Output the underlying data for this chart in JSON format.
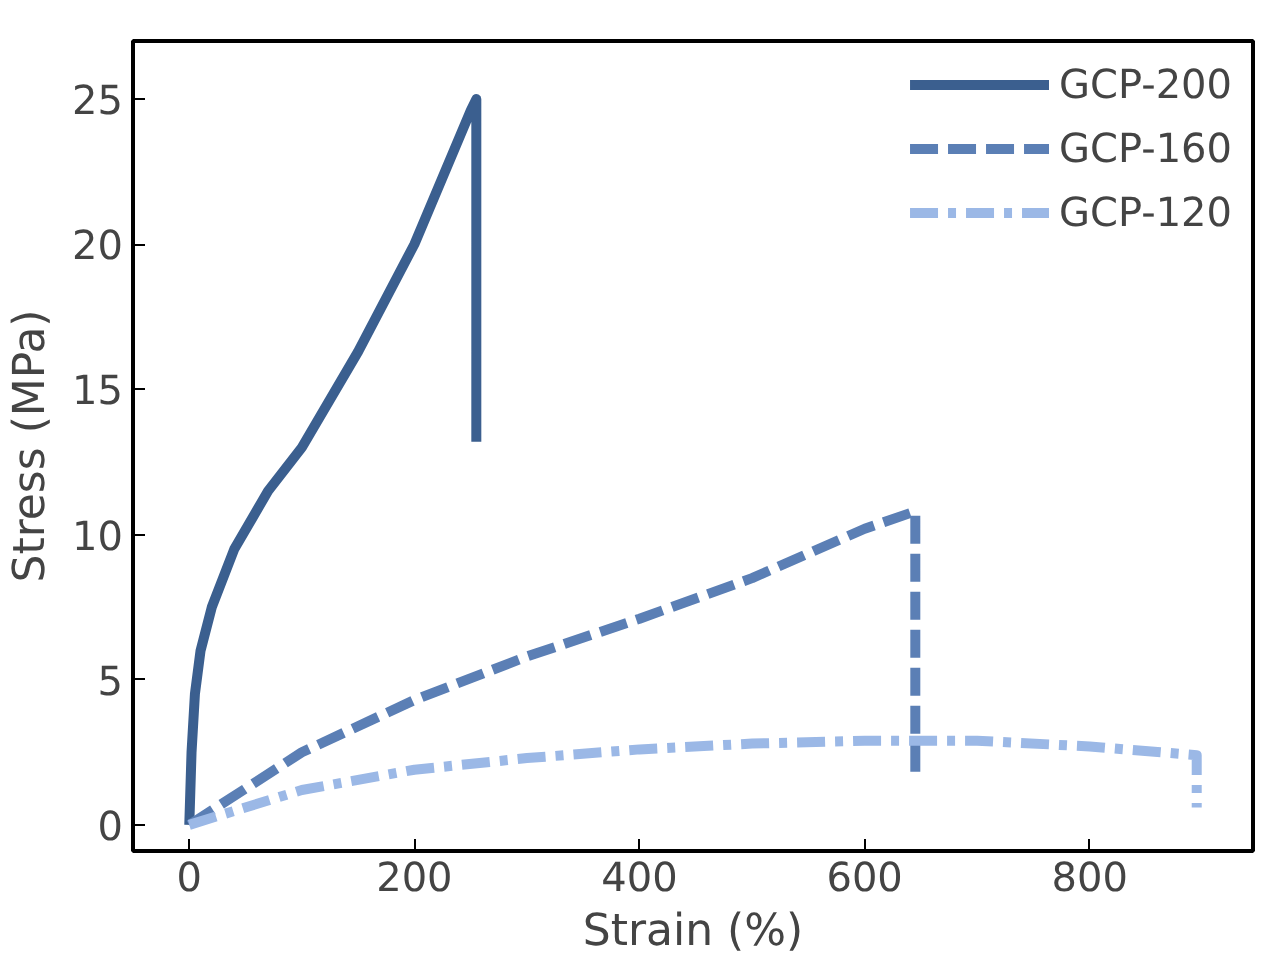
{
  "chart_data": {
    "type": "line",
    "xlabel": "Strain (%)",
    "ylabel": "Stress (MPa)",
    "xlim": [
      -50,
      945
    ],
    "ylim": [
      -0.9,
      27
    ],
    "xticks": [
      0,
      200,
      400,
      600,
      800
    ],
    "yticks": [
      0,
      5,
      10,
      15,
      20,
      25
    ],
    "grid": false,
    "legend": "top right",
    "marker": "none",
    "series": [
      {
        "name": "GCP-200",
        "color": "#3b5f8f",
        "line_style": "solid",
        "x": [
          0,
          2,
          5,
          10,
          20,
          40,
          70,
          100,
          150,
          200,
          250,
          255,
          255
        ],
        "values": [
          0,
          2.5,
          4.5,
          6,
          7.5,
          9.5,
          11.5,
          13,
          16.3,
          20,
          24.6,
          25,
          13.2
        ]
      },
      {
        "name": "GCP-160",
        "color": "#5b7fb5",
        "line_style": "dashed",
        "x": [
          0,
          100,
          200,
          300,
          400,
          500,
          600,
          645,
          645
        ],
        "values": [
          0,
          2.5,
          4.3,
          5.8,
          7.1,
          8.5,
          10.2,
          10.8,
          1.8
        ]
      },
      {
        "name": "GCP-120",
        "color": "#9bb8e6",
        "line_style": "dashdot",
        "x": [
          0,
          100,
          200,
          300,
          400,
          500,
          600,
          700,
          800,
          895,
          895
        ],
        "values": [
          0,
          1.2,
          1.9,
          2.3,
          2.6,
          2.8,
          2.9,
          2.9,
          2.7,
          2.4,
          0.6
        ]
      }
    ]
  }
}
